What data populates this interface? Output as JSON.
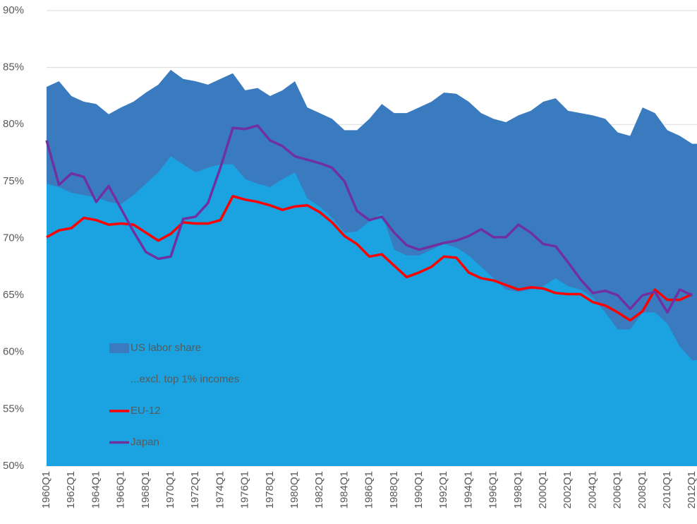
{
  "chart_data": {
    "type": "area",
    "categories": [
      "1960Q1",
      null,
      "1962Q1",
      null,
      "1964Q1",
      null,
      "1966Q1",
      null,
      "1968Q1",
      null,
      "1970Q1",
      null,
      "1972Q1",
      null,
      "1974Q1",
      null,
      "1976Q1",
      null,
      "1978Q1",
      null,
      "1980Q1",
      null,
      "1982Q1",
      null,
      "1984Q1",
      null,
      "1986Q1",
      null,
      "1988Q1",
      null,
      "1990Q1",
      null,
      "1992Q1",
      null,
      "1994Q1",
      null,
      "1996Q1",
      null,
      "1998Q1",
      null,
      "2000Q1",
      null,
      "2002Q1",
      null,
      "2004Q1",
      null,
      "2006Q1",
      null,
      "2008Q1",
      null,
      "2010Q1",
      null,
      "2012Q1"
    ],
    "series": [
      {
        "name": "US labor share",
        "type": "area",
        "color": "#3a7bbf",
        "values": [
          83.3,
          83.8,
          82.5,
          82.0,
          81.8,
          80.9,
          81.5,
          82.0,
          82.8,
          83.5,
          84.8,
          84.0,
          83.8,
          83.5,
          84.0,
          84.5,
          83.0,
          83.2,
          82.5,
          83.0,
          83.8,
          81.5,
          81.0,
          80.5,
          79.5,
          79.5,
          80.5,
          81.8,
          81.0,
          81.0,
          81.5,
          82.0,
          82.8,
          82.7,
          82.0,
          81.0,
          80.5,
          80.2,
          80.8,
          81.2,
          82.0,
          82.3,
          81.2,
          81.0,
          80.8,
          80.5,
          79.3,
          79.0,
          81.5,
          81.0,
          79.5,
          79.0,
          78.3
        ]
      },
      {
        "name": "...excl. top 1% incomes",
        "type": "area",
        "color": "#1aa3e0",
        "values": [
          74.8,
          74.5,
          74.0,
          73.8,
          73.6,
          73.2,
          73.0,
          73.8,
          74.8,
          75.8,
          77.2,
          76.5,
          75.8,
          76.2,
          76.5,
          76.5,
          75.2,
          74.8,
          74.5,
          75.2,
          75.8,
          73.5,
          72.8,
          71.8,
          70.5,
          70.6,
          71.5,
          72.2,
          69.0,
          68.5,
          68.5,
          69.0,
          69.5,
          69.2,
          68.5,
          67.5,
          66.5,
          65.5,
          65.3,
          65.5,
          65.8,
          66.5,
          65.8,
          65.5,
          64.8,
          63.5,
          62.0,
          62.0,
          63.5,
          63.5,
          62.5,
          60.5,
          59.3
        ]
      },
      {
        "name": "EU-12",
        "type": "line",
        "color": "#ff0000",
        "values": [
          70.1,
          70.7,
          70.9,
          71.8,
          71.6,
          71.2,
          71.3,
          71.2,
          70.5,
          69.8,
          70.4,
          71.4,
          71.3,
          71.3,
          71.6,
          73.7,
          73.4,
          73.2,
          72.9,
          72.5,
          72.8,
          72.9,
          72.3,
          71.4,
          70.2,
          69.5,
          68.4,
          68.6,
          67.6,
          66.6,
          67.0,
          67.5,
          68.4,
          68.3,
          67.0,
          66.5,
          66.3,
          65.9,
          65.5,
          65.7,
          65.6,
          65.2,
          65.1,
          65.1,
          64.4,
          64.1,
          63.5,
          62.8,
          63.6,
          65.5,
          64.6,
          64.6,
          65.1
        ]
      },
      {
        "name": "Japan",
        "type": "line",
        "color": "#7030a0",
        "values": [
          78.6,
          74.7,
          75.7,
          75.4,
          73.2,
          74.6,
          72.6,
          70.6,
          68.8,
          68.2,
          68.4,
          71.7,
          71.9,
          73.1,
          76.2,
          79.7,
          79.6,
          79.9,
          78.6,
          78.1,
          77.2,
          76.9,
          76.6,
          76.2,
          75.0,
          72.4,
          71.6,
          71.9,
          70.5,
          69.4,
          69.0,
          69.3,
          69.6,
          69.8,
          70.2,
          70.8,
          70.1,
          70.1,
          71.2,
          70.5,
          69.5,
          69.3,
          67.9,
          66.4,
          65.2,
          65.4,
          65.0,
          63.8,
          65.0,
          65.3,
          63.5,
          65.5,
          65.0
        ]
      }
    ],
    "ylim": [
      50,
      90
    ],
    "yticks": [
      {
        "value": 50,
        "label": "50%"
      },
      {
        "value": 55,
        "label": "55%"
      },
      {
        "value": 60,
        "label": "60%"
      },
      {
        "value": 65,
        "label": "65%"
      },
      {
        "value": 70,
        "label": "70%"
      },
      {
        "value": 75,
        "label": "75%"
      },
      {
        "value": 80,
        "label": "80%"
      },
      {
        "value": 85,
        "label": "85%"
      },
      {
        "value": 90,
        "label": "90%"
      }
    ],
    "grid": true,
    "legend": "lower left"
  }
}
